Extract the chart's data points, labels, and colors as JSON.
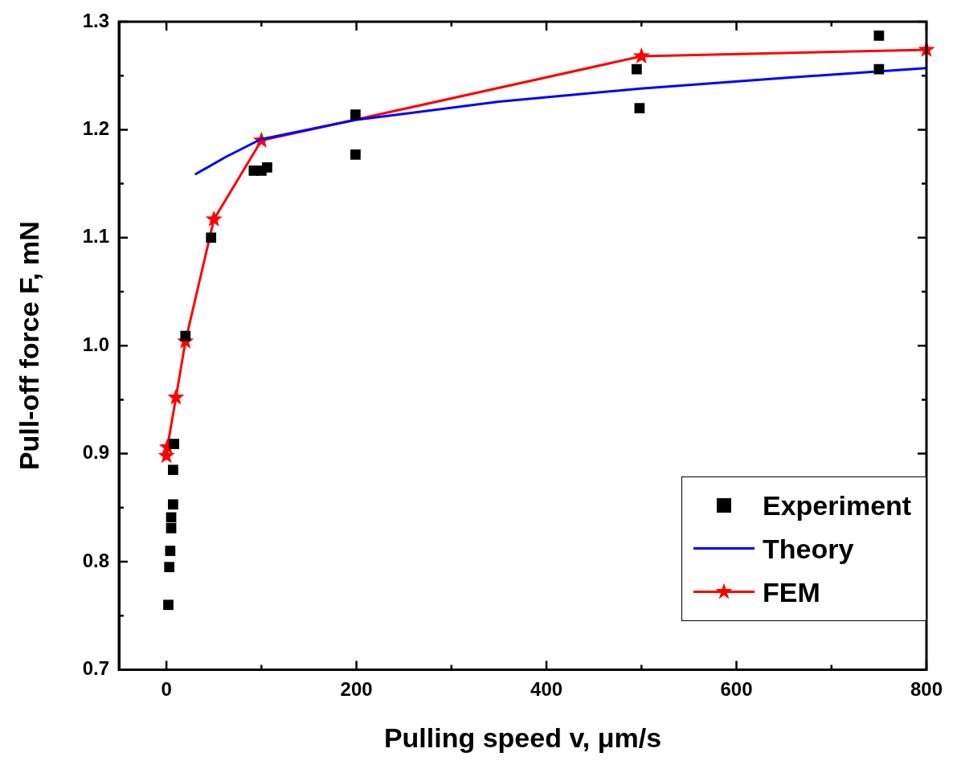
{
  "chart_data": {
    "type": "scatter",
    "xlabel": "Pulling speed v, μm/s",
    "ylabel": "Pull-off force F, mN",
    "xlim": [
      -50,
      800
    ],
    "ylim": [
      0.7,
      1.3
    ],
    "xticks": [
      0,
      {
        "value": 100,
        "label": null
      },
      200,
      {
        "value": 300,
        "label": null
      },
      400,
      {
        "value": 500,
        "label": null
      },
      600,
      {
        "value": 700,
        "label": null
      },
      800
    ],
    "yticks": [
      0.7,
      {
        "value": 0.75,
        "label": null
      },
      0.8,
      {
        "value": 0.85,
        "label": null
      },
      0.9,
      {
        "value": 0.95,
        "label": null
      },
      {
        "value": 1.0,
        "label": "1.0"
      },
      {
        "value": 1.05,
        "label": null
      },
      1.1,
      {
        "value": 1.15,
        "label": null
      },
      1.2,
      {
        "value": 1.25,
        "label": null
      },
      1.3
    ],
    "grid": false,
    "legend": "bottom right",
    "series": [
      {
        "name": "Experiment",
        "type": "scatter",
        "marker": "square",
        "color": "#000000",
        "x": [
          2,
          3,
          4,
          5,
          5,
          7,
          7,
          8,
          20,
          47,
          92,
          100,
          106,
          199,
          199,
          495,
          498,
          750,
          750
        ],
        "values": [
          0.76,
          0.795,
          0.81,
          0.831,
          0.841,
          0.853,
          0.885,
          0.909,
          1.009,
          1.1,
          1.162,
          1.162,
          1.165,
          1.214,
          1.177,
          1.256,
          1.22,
          1.287,
          1.256
        ]
      },
      {
        "name": "Theory",
        "type": "line",
        "marker": "none",
        "line_style": "solid",
        "color": "#0000ff",
        "x": [
          31,
          63,
          99,
          199,
          350,
          499,
          650,
          800
        ],
        "values": [
          1.159,
          1.175,
          1.191,
          1.209,
          1.226,
          1.238,
          1.248,
          1.257
        ]
      },
      {
        "name": "FEM",
        "type": "line",
        "marker": "star",
        "line_style": "solid",
        "color": "#ff0000",
        "x": [
          0,
          1,
          10,
          20,
          50,
          100,
          500,
          800
        ],
        "values": [
          0.898,
          0.906,
          0.952,
          1.004,
          1.117,
          1.19,
          1.268,
          1.274
        ]
      }
    ]
  }
}
